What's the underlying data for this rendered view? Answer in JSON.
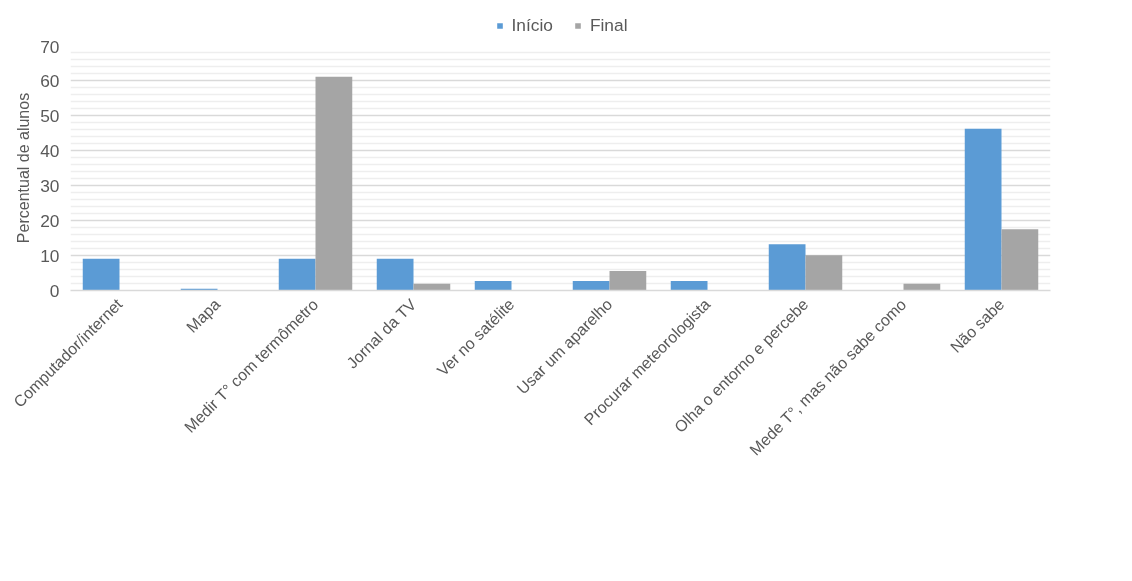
{
  "chart_data": {
    "type": "bar",
    "categories": [
      "Computador/internet",
      "Mapa",
      "Medir T° com termômetro",
      "Jornal da TV",
      "Ver no satélite",
      "Usar um aparelho",
      "Procurar meteorologista",
      "Olha o entorno e percebe",
      "Mede T°, mas não sabe como",
      "Não sabe"
    ],
    "series": [
      {
        "name": "Início",
        "color": "#5b9bd5",
        "values": [
          9.1,
          0.5,
          9.1,
          9.1,
          2.7,
          2.7,
          2.7,
          13.2,
          0,
          46.2
        ]
      },
      {
        "name": "Final",
        "color": "#a5a5a5",
        "values": [
          0,
          0,
          61.1,
          1.9,
          0,
          5.6,
          0,
          10.1,
          1.9,
          17.5
        ]
      }
    ],
    "ylabel": "Percentual de alunos",
    "ylim": [
      0,
      70
    ],
    "yticks": [
      0,
      10,
      20,
      30,
      40,
      50,
      60,
      70
    ],
    "grid": "y",
    "legend": "top"
  }
}
